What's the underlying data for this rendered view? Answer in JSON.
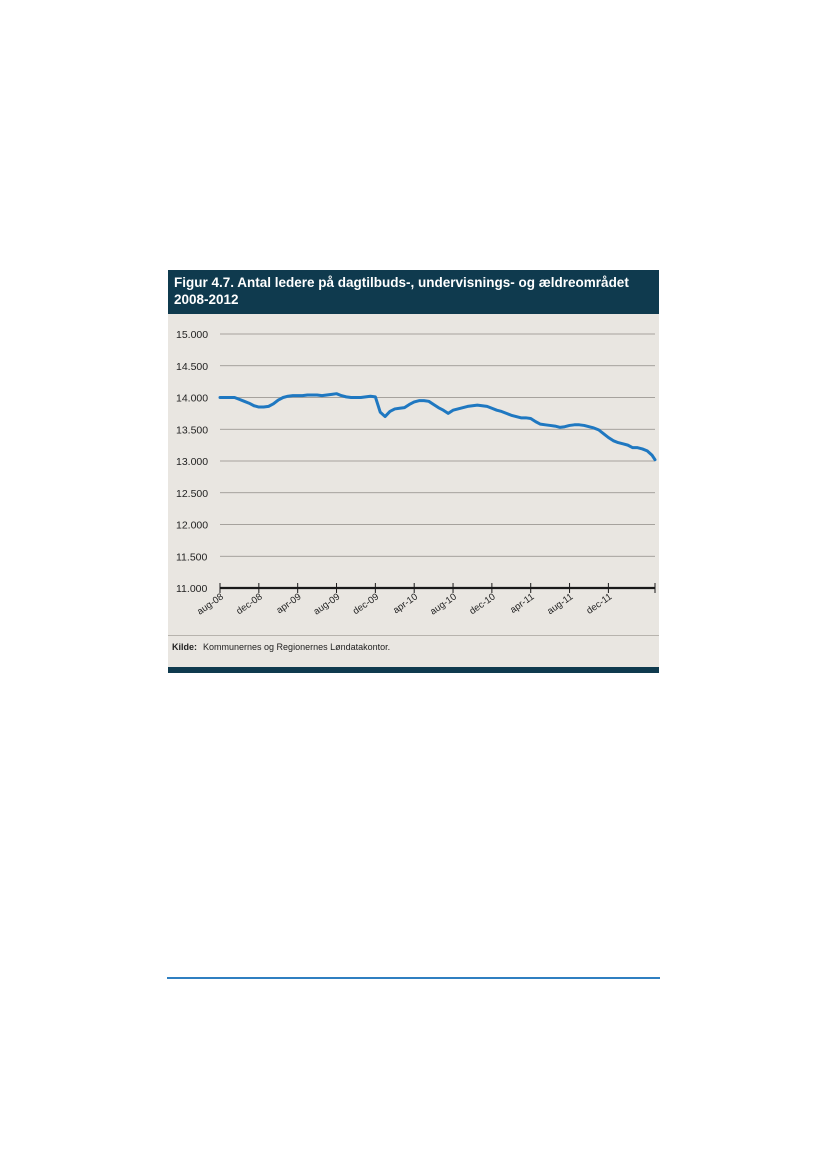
{
  "figure": {
    "title_line1": "Figur 4.7. Antal ledere på dagtilbuds-, undervisnings- og ældreområdet",
    "title_line2": "2008-2012",
    "source_label": "Kilde:",
    "source_text": "Kommunernes og Regionernes Løndatakontor."
  },
  "colors": {
    "header_bg": "#0f3a4e",
    "plot_bg": "#e9e6e1",
    "line": "#1f78c1",
    "footer_rule": "#2f7fc1"
  },
  "chart_data": {
    "type": "line",
    "title": "Figur 4.7. Antal ledere på dagtilbuds-, undervisnings- og ældreområdet 2008-2012",
    "xlabel": "",
    "ylabel": "",
    "ylim": [
      11000,
      15000
    ],
    "y_ticks": [
      15000,
      14500,
      14000,
      13500,
      13000,
      12500,
      12000,
      11500,
      11000
    ],
    "y_tick_labels": [
      "15.000",
      "14.500",
      "14.000",
      "13.500",
      "13.000",
      "12.500",
      "12.000",
      "11.500",
      "11.000"
    ],
    "x_tick_labels": [
      "aug-08",
      "dec-08",
      "apr-09",
      "aug-09",
      "dec-09",
      "apr-10",
      "aug-10",
      "dec-10",
      "apr-11",
      "aug-11",
      "dec-11"
    ],
    "grid": true,
    "series": [
      {
        "name": "",
        "x": [
          0,
          0.5,
          1,
          1.5,
          2,
          2.5,
          3,
          3.5,
          4,
          4.5,
          5,
          5.5,
          6,
          6.5,
          7,
          7.5,
          8,
          8.5,
          9,
          9.5,
          10,
          10.5,
          11,
          11.5,
          12,
          12.5,
          13,
          13.5,
          14,
          14.5,
          15,
          15.5,
          16,
          16.5,
          17,
          17.5,
          18,
          18.5,
          19,
          19.5,
          20,
          20.5,
          21,
          21.5,
          22,
          22.5,
          23,
          23.5,
          24,
          24.5,
          25,
          25.5,
          26,
          26.5,
          27,
          27.5,
          28,
          28.5,
          29,
          29.5,
          30,
          30.5,
          31,
          31.5,
          32,
          32.5,
          33,
          33.5,
          34,
          34.5,
          35,
          35.5,
          36,
          36.5,
          37,
          37.5,
          38,
          38.5,
          39,
          39.5,
          40,
          40.5,
          41,
          41.5,
          42,
          42.5,
          43,
          43.5,
          44,
          44.5,
          44.8
        ],
        "values": [
          14000,
          14000,
          14000,
          14000,
          13970,
          13940,
          13910,
          13870,
          13850,
          13850,
          13860,
          13900,
          13960,
          14000,
          14020,
          14030,
          14030,
          14030,
          14040,
          14040,
          14040,
          14030,
          14040,
          14050,
          14060,
          14030,
          14010,
          14000,
          14000,
          14000,
          14010,
          14020,
          14010,
          13770,
          13700,
          13780,
          13820,
          13830,
          13840,
          13890,
          13930,
          13950,
          13950,
          13940,
          13890,
          13840,
          13800,
          13750,
          13800,
          13820,
          13840,
          13860,
          13870,
          13880,
          13870,
          13860,
          13830,
          13800,
          13780,
          13750,
          13720,
          13700,
          13680,
          13680,
          13670,
          13620,
          13580,
          13570,
          13560,
          13550,
          13530,
          13540,
          13560,
          13570,
          13570,
          13560,
          13540,
          13520,
          13490,
          13430,
          13370,
          13320,
          13290,
          13270,
          13250,
          13210,
          13210,
          13190,
          13160,
          13090,
          13020
        ]
      }
    ]
  }
}
